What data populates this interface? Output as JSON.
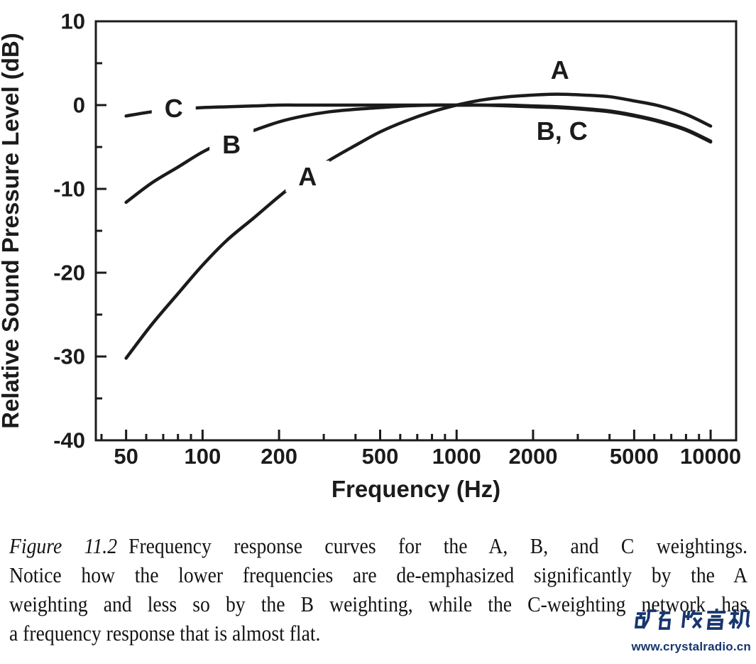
{
  "page": {
    "background": "#ffffff",
    "ink_color": "#1b1b1b"
  },
  "chart_data": {
    "type": "line",
    "title": "",
    "xlabel": "Frequency (Hz)",
    "ylabel": "Relative Sound Pressure Level (dB)",
    "x_scale": "log",
    "xlim": [
      38,
      12600
    ],
    "ylim": [
      -40,
      10
    ],
    "grid": false,
    "legend": "inline curve labels",
    "x_major_ticks": [
      {
        "f": 50,
        "label": "50"
      },
      {
        "f": 100,
        "label": "100"
      },
      {
        "f": 200,
        "label": "200"
      },
      {
        "f": 500,
        "label": "500"
      },
      {
        "f": 1000,
        "label": "1000"
      },
      {
        "f": 2000,
        "label": "2000"
      },
      {
        "f": 5000,
        "label": "5000"
      },
      {
        "f": 10000,
        "label": "10000"
      }
    ],
    "x_minor_ticks": [
      40,
      60,
      70,
      80,
      90,
      300,
      400,
      600,
      700,
      800,
      900,
      3000,
      4000,
      6000,
      7000,
      8000,
      9000
    ],
    "y_major_ticks": [
      {
        "db": 10,
        "label": "10"
      },
      {
        "db": 0,
        "label": "0"
      },
      {
        "db": -10,
        "label": "-10"
      },
      {
        "db": -20,
        "label": "-20"
      },
      {
        "db": -30,
        "label": "-30"
      },
      {
        "db": -40,
        "label": "-40"
      }
    ],
    "y_minor_ticks": [
      5,
      -5,
      -15,
      -25,
      -35
    ],
    "frequencies": [
      50,
      63,
      80,
      100,
      125,
      160,
      200,
      250,
      315,
      400,
      500,
      630,
      800,
      1000,
      1250,
      1600,
      2000,
      2500,
      3150,
      4000,
      5000,
      6300,
      8000,
      10000
    ],
    "series": [
      {
        "name": "C",
        "values": [
          -1.3,
          -0.8,
          -0.5,
          -0.3,
          -0.2,
          -0.1,
          0,
          0,
          0,
          0,
          0,
          0,
          0,
          0,
          0,
          -0.1,
          -0.2,
          -0.3,
          -0.5,
          -0.8,
          -1.3,
          -2.0,
          -3.0,
          -4.4
        ]
      },
      {
        "name": "B",
        "values": [
          -11.6,
          -9.3,
          -7.4,
          -5.6,
          -4.2,
          -3.0,
          -2.0,
          -1.3,
          -0.8,
          -0.5,
          -0.3,
          -0.1,
          0,
          0,
          0,
          0,
          -0.1,
          -0.2,
          -0.4,
          -0.7,
          -1.2,
          -1.9,
          -2.9,
          -4.3
        ]
      },
      {
        "name": "A",
        "values": [
          -30.2,
          -26.2,
          -22.5,
          -19.1,
          -16.1,
          -13.4,
          -10.9,
          -8.6,
          -6.6,
          -4.8,
          -3.2,
          -1.9,
          -0.8,
          0,
          0.6,
          1.0,
          1.2,
          1.3,
          1.2,
          1.0,
          0.5,
          -0.1,
          -1.1,
          -2.5
        ]
      }
    ],
    "curve_labels": [
      {
        "text": "C",
        "f": 77,
        "db": -0.4,
        "knockout": true
      },
      {
        "text": "B",
        "f": 130,
        "db": -4.7,
        "knockout": true
      },
      {
        "text": "A",
        "f": 259,
        "db": -8.5,
        "knockout": true
      },
      {
        "text": "A",
        "f": 2550,
        "db": 4.2,
        "knockout": false
      },
      {
        "text": "B, C",
        "f": 2600,
        "db": -3.1,
        "knockout": false
      }
    ],
    "line_color": "#1b1b1b"
  },
  "caption": {
    "label": "Figure 11.2",
    "line1": "Frequency response curves for the A, B, and C weightings.",
    "line2": "Notice how the lower frequencies are de-emphasized significantly by the A",
    "line3": "weighting and less so by the B weighting, while the C-weighting network has",
    "line4": "a frequency response that is almost flat."
  },
  "watermark": {
    "logo_text": "矿石收音机",
    "url": "www.crystalradio.cn",
    "color": "#17366d"
  }
}
